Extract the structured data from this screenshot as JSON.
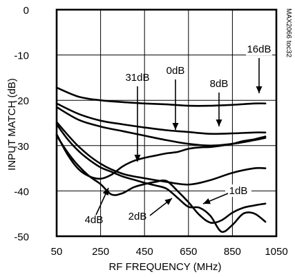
{
  "chart_data": {
    "type": "line",
    "title": "",
    "xlabel": "RF FREQUENCY (MHz)",
    "ylabel": "INPUT MATCH (dB)",
    "xlim": [
      50,
      1050
    ],
    "ylim": [
      -50,
      0
    ],
    "xticks": [
      50,
      250,
      450,
      650,
      850,
      1050
    ],
    "yticks": [
      0,
      -10,
      -20,
      -30,
      -40,
      -50
    ],
    "xtick_labels": [
      "50",
      "250",
      "450",
      "650",
      "850",
      "1050"
    ],
    "ytick_labels": [
      "0",
      "-10",
      "-20",
      "-30",
      "-40",
      "-50"
    ],
    "grid": true,
    "watermark": "MAX2066 toc32",
    "series": [
      {
        "name": "16dB",
        "x": [
          50,
          150,
          250,
          350,
          450,
          550,
          650,
          750,
          850,
          950,
          1000
        ],
        "y": [
          -17.2,
          -19.2,
          -20.0,
          -20.4,
          -20.7,
          -20.9,
          -21.2,
          -21.2,
          -21.0,
          -20.7,
          -20.7
        ]
      },
      {
        "name": "8dB",
        "x": [
          50,
          150,
          250,
          350,
          450,
          550,
          650,
          750,
          850,
          950,
          1000
        ],
        "y": [
          -20.7,
          -23.0,
          -24.5,
          -25.3,
          -26.0,
          -26.6,
          -27.0,
          -27.4,
          -27.3,
          -27.1,
          -27.1
        ]
      },
      {
        "name": "0dB",
        "x": [
          50,
          150,
          250,
          350,
          450,
          550,
          650,
          750,
          850,
          950,
          1000
        ],
        "y": [
          -21.5,
          -24.3,
          -25.8,
          -26.8,
          -27.8,
          -28.8,
          -29.6,
          -30.0,
          -29.6,
          -28.8,
          -28.3
        ]
      },
      {
        "name": "31dB",
        "x": [
          50,
          150,
          250,
          350,
          450,
          550,
          650,
          750,
          850,
          950,
          1000
        ],
        "y": [
          -24.8,
          -30.2,
          -34.0,
          -36.2,
          -37.2,
          -38.0,
          -38.6,
          -37.6,
          -36.0,
          -35.0,
          -35.0
        ]
      },
      {
        "name": "4dB",
        "x": [
          50,
          100,
          150,
          200,
          250,
          300,
          350,
          400,
          450,
          500,
          550,
          600,
          650,
          700,
          750,
          800,
          850,
          900,
          950,
          1000
        ],
        "y": [
          -27.5,
          -32.0,
          -35.2,
          -36.8,
          -37.3,
          -36.4,
          -34.6,
          -33.4,
          -32.7,
          -32.2,
          -31.7,
          -31.4,
          -30.7,
          -30.4,
          -30.3,
          -30.0,
          -29.6,
          -29.0,
          -28.6,
          -28.0
        ]
      },
      {
        "name": "2dB",
        "x": [
          50,
          100,
          150,
          200,
          250,
          300,
          350,
          400,
          450,
          500,
          550,
          600,
          650,
          700,
          750,
          800,
          850,
          900,
          950,
          1000
        ],
        "y": [
          -27.8,
          -31.5,
          -34.5,
          -36.8,
          -38.5,
          -40.8,
          -40.5,
          -39.2,
          -38.5,
          -38.0,
          -37.8,
          -40.0,
          -42.5,
          -45.3,
          -47.0,
          -46.5,
          -44.8,
          -43.7,
          -43.2,
          -42.8
        ]
      },
      {
        "name": "1dB",
        "x": [
          50,
          100,
          150,
          200,
          250,
          300,
          350,
          400,
          450,
          500,
          550,
          600,
          650,
          700,
          750,
          800,
          850,
          900,
          950,
          1000
        ],
        "y": [
          -25.3,
          -28.6,
          -31.2,
          -33.2,
          -34.8,
          -35.8,
          -36.8,
          -37.5,
          -38.2,
          -38.8,
          -39.5,
          -41.5,
          -43.5,
          -43.7,
          -45.5,
          -49.0,
          -47.5,
          -45.0,
          -45.0,
          -46.8
        ]
      }
    ],
    "annotations": [
      {
        "text": "16dB",
        "series": "16dB",
        "x": 960,
        "y": -20.6
      },
      {
        "text": "8dB",
        "series": "8dB",
        "x": 740,
        "y": -27.3
      },
      {
        "text": "0dB",
        "series": "0dB",
        "x": 578,
        "y": -29.3
      },
      {
        "text": "31dB",
        "series": "31dB",
        "x": 418,
        "y": -37.2
      },
      {
        "text": "4dB",
        "series": "4dB",
        "x": 290,
        "y": -38.6
      },
      {
        "text": "2dB",
        "series": "2dB",
        "x": 580,
        "y": -42.0
      },
      {
        "text": "1dB",
        "series": "1dB",
        "x": 708,
        "y": -44.0
      }
    ]
  }
}
